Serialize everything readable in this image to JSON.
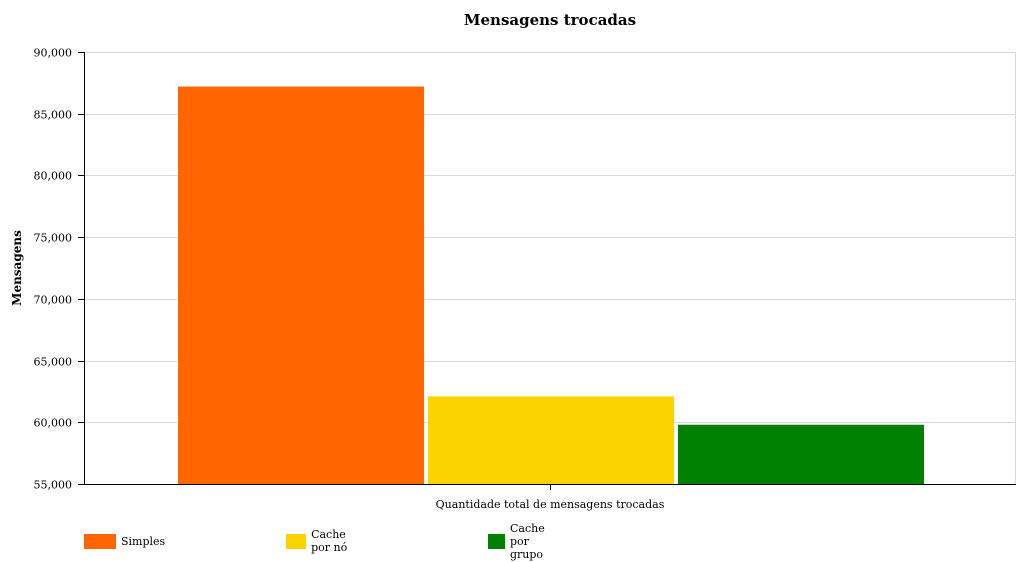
{
  "chart_data": {
    "type": "bar",
    "title": "Mensagens trocadas",
    "xlabel": "Quantidade total de mensagens trocadas",
    "ylabel": "Mensagens",
    "ylim": [
      55000,
      90000
    ],
    "yticks": [
      55000,
      60000,
      65000,
      70000,
      75000,
      80000,
      85000,
      90000
    ],
    "ytick_labels": [
      "55,000",
      "60,000",
      "65,000",
      "70,000",
      "75,000",
      "80,000",
      "85,000",
      "90,000"
    ],
    "grid": true,
    "legend_position": "bottom-left",
    "categories": [
      "Quantidade total de mensagens trocadas"
    ],
    "series": [
      {
        "name": "Simples",
        "color": "#ff6600",
        "values": [
          87200
        ]
      },
      {
        "name": "Cache por nó",
        "color": "#fcd200",
        "values": [
          62100
        ]
      },
      {
        "name": "Cache por grupo",
        "color": "#008000",
        "values": [
          59800
        ]
      }
    ]
  }
}
